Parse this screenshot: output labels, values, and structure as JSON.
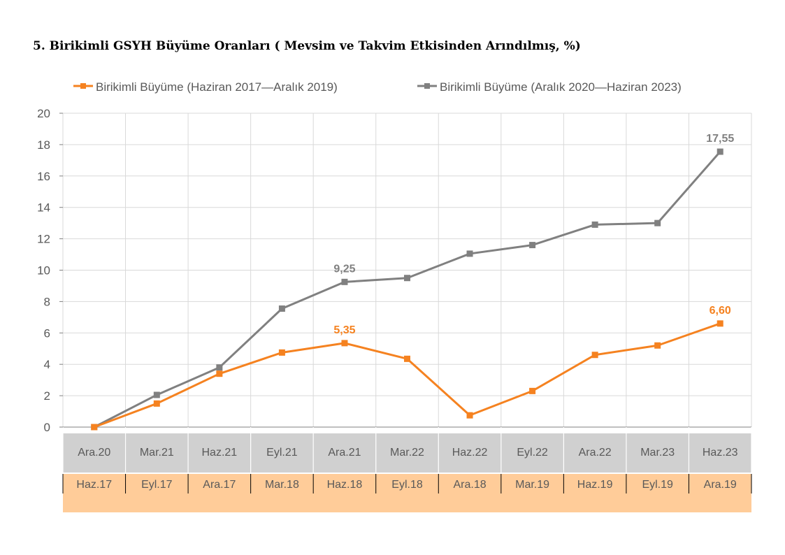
{
  "title": "5. Birikimli GSYH Büyüme Oranları ( Mevsim ve Takvim Etkisinden Arındılmış, %)",
  "colors": {
    "series_orange": "#F58220",
    "series_gray": "#808080",
    "band_gray": "#D0D0D0",
    "band_orange": "#FFCC99",
    "grid": "#D9D9D9",
    "text": "#595959"
  },
  "chart_data": {
    "type": "line",
    "ylim": [
      0,
      20
    ],
    "yticks": [
      0,
      2,
      4,
      6,
      8,
      10,
      12,
      14,
      16,
      18,
      20
    ],
    "grid": true,
    "legend_position": "top",
    "x_labels_top_band": [
      "Ara.20",
      "Mar.21",
      "Haz.21",
      "Eyl.21",
      "Ara.21",
      "Mar.22",
      "Haz.22",
      "Eyl.22",
      "Ara.22",
      "Mar.23",
      "Haz.23"
    ],
    "x_labels_bottom_band": [
      "Haz.17",
      "Eyl.17",
      "Ara.17",
      "Mar.18",
      "Haz.18",
      "Eyl.18",
      "Ara.18",
      "Mar.19",
      "Haz.19",
      "Eyl.19",
      "Ara.19"
    ],
    "series": [
      {
        "name": "Birikimli Büyüme (Haziran 2017—Aralık 2019)",
        "color_key": "series_orange",
        "values": [
          0,
          1.5,
          3.4,
          4.75,
          5.35,
          4.35,
          0.75,
          2.3,
          4.6,
          5.2,
          6.6
        ],
        "labels": [
          {
            "index": 4,
            "text": "5,35"
          },
          {
            "index": 10,
            "text": "6,60"
          }
        ]
      },
      {
        "name": "Birikimli Büyüme (Aralık 2020—Haziran 2023)",
        "color_key": "series_gray",
        "values": [
          0,
          2.05,
          3.8,
          7.55,
          9.25,
          9.5,
          11.05,
          11.6,
          12.9,
          13.0,
          17.55
        ],
        "labels": [
          {
            "index": 4,
            "text": "9,25"
          },
          {
            "index": 10,
            "text": "17,55"
          }
        ]
      }
    ]
  }
}
